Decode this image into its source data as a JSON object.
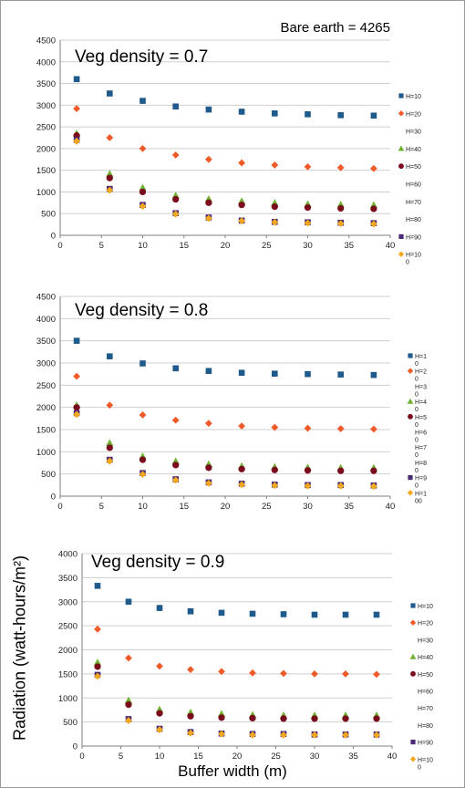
{
  "bare_earth_label": "Bare earth = 4265",
  "ylabel": "Radiation (watt-hours/m²)",
  "xlabel": "Buffer width (m)",
  "colors": {
    "H=10": "#1f5a8c",
    "H=20": "#f05a28",
    "H=40": "#70b032",
    "H=50": "#7a0a1e",
    "H=90": "#4a2a78",
    "H=100": "#f2a81e"
  },
  "chart_data": [
    {
      "type": "scatter",
      "title": "Veg density = 0.7",
      "xlim": [
        0,
        40
      ],
      "ylim": [
        0,
        4500
      ],
      "xticks": [
        "0",
        "5",
        "10",
        "15",
        "20",
        "25",
        "30",
        "35",
        "40"
      ],
      "yticks": [
        "0",
        "500",
        "1000",
        "1500",
        "2000",
        "2500",
        "3000",
        "3500",
        "4000",
        "4500"
      ],
      "grid": true,
      "legend_position": "right",
      "legend": [
        [
          "H=10"
        ],
        [
          "H=20"
        ],
        [
          "H=30"
        ],
        [
          "H=40"
        ],
        [
          "H=50"
        ],
        [
          "H=60"
        ],
        [
          "H=70"
        ],
        [
          "H=80"
        ],
        [
          "H=90"
        ],
        [
          "H=10",
          "0"
        ]
      ],
      "x": [
        2,
        6,
        10,
        14,
        18,
        22,
        26,
        30,
        34,
        38
      ],
      "series": [
        {
          "name": "H=10",
          "values": [
            3600,
            3270,
            3100,
            2970,
            2900,
            2850,
            2810,
            2790,
            2770,
            2760
          ]
        },
        {
          "name": "H=20",
          "values": [
            2920,
            2250,
            2000,
            1850,
            1750,
            1670,
            1620,
            1580,
            1560,
            1540
          ]
        },
        {
          "name": "H=40",
          "values": [
            2350,
            1420,
            1100,
            920,
            840,
            790,
            750,
            720,
            710,
            700
          ]
        },
        {
          "name": "H=50",
          "values": [
            2300,
            1320,
            1000,
            830,
            750,
            700,
            660,
            640,
            620,
            610
          ]
        },
        {
          "name": "H=90",
          "values": [
            2200,
            1070,
            700,
            510,
            410,
            340,
            310,
            300,
            290,
            280
          ]
        },
        {
          "name": "H=100",
          "values": [
            2170,
            1040,
            670,
            490,
            390,
            330,
            300,
            280,
            270,
            260
          ]
        }
      ]
    },
    {
      "type": "scatter",
      "title": "Veg density = 0.8",
      "xlim": [
        0,
        40
      ],
      "ylim": [
        0,
        4500
      ],
      "xticks": [
        "0",
        "5",
        "10",
        "15",
        "20",
        "25",
        "30",
        "35",
        "40"
      ],
      "yticks": [
        "0",
        "500",
        "1000",
        "1500",
        "2000",
        "2500",
        "3000",
        "3500",
        "4000",
        "4500"
      ],
      "grid": true,
      "legend_position": "right",
      "legend": [
        [
          "H=1",
          "0"
        ],
        [
          "H=2",
          "0"
        ],
        [
          "H=3",
          "0"
        ],
        [
          "H=4",
          "0"
        ],
        [
          "H=5",
          "0"
        ],
        [
          "H=6",
          "0"
        ],
        [
          "H=7",
          "0"
        ],
        [
          "H=8",
          "0"
        ],
        [
          "H=9",
          "0"
        ],
        [
          "H=1",
          "00"
        ]
      ],
      "x": [
        2,
        6,
        10,
        14,
        18,
        22,
        26,
        30,
        34,
        38
      ],
      "series": [
        {
          "name": "H=10",
          "values": [
            3500,
            3150,
            2990,
            2880,
            2820,
            2780,
            2760,
            2750,
            2740,
            2730
          ]
        },
        {
          "name": "H=20",
          "values": [
            2700,
            2050,
            1830,
            1710,
            1640,
            1580,
            1550,
            1530,
            1520,
            1510
          ]
        },
        {
          "name": "H=40",
          "values": [
            2050,
            1200,
            900,
            790,
            720,
            680,
            660,
            650,
            640,
            640
          ]
        },
        {
          "name": "H=50",
          "values": [
            2000,
            1090,
            820,
            700,
            640,
            610,
            590,
            580,
            570,
            570
          ]
        },
        {
          "name": "H=90",
          "values": [
            1870,
            820,
            520,
            380,
            310,
            280,
            260,
            250,
            250,
            240
          ]
        },
        {
          "name": "H=100",
          "values": [
            1840,
            790,
            490,
            360,
            290,
            260,
            240,
            230,
            230,
            220
          ]
        }
      ]
    },
    {
      "type": "scatter",
      "title": "Veg density = 0.9",
      "xlim": [
        0,
        40
      ],
      "ylim": [
        0,
        4000
      ],
      "xticks": [
        "0",
        "5",
        "10",
        "15",
        "20",
        "25",
        "30",
        "35",
        "40"
      ],
      "yticks": [
        "0",
        "500",
        "1000",
        "1500",
        "2000",
        "2500",
        "3000",
        "3500",
        "4000"
      ],
      "grid": true,
      "legend_position": "right",
      "legend": [
        [
          "H=10"
        ],
        [
          "H=20"
        ],
        [
          "H=30"
        ],
        [
          "H=40"
        ],
        [
          "H=50"
        ],
        [
          "H=60"
        ],
        [
          "H=70"
        ],
        [
          "H=80"
        ],
        [
          "H=90"
        ],
        [
          "H=10",
          "0"
        ]
      ],
      "x": [
        2,
        6,
        10,
        14,
        18,
        22,
        26,
        30,
        34,
        38
      ],
      "series": [
        {
          "name": "H=10",
          "values": [
            3330,
            3000,
            2870,
            2800,
            2770,
            2750,
            2740,
            2730,
            2730,
            2730
          ]
        },
        {
          "name": "H=20",
          "values": [
            2430,
            1830,
            1660,
            1590,
            1550,
            1520,
            1510,
            1500,
            1500,
            1490
          ]
        },
        {
          "name": "H=40",
          "values": [
            1740,
            950,
            760,
            700,
            670,
            650,
            640,
            640,
            640,
            640
          ]
        },
        {
          "name": "H=50",
          "values": [
            1650,
            860,
            680,
            620,
            590,
            580,
            570,
            570,
            570,
            570
          ]
        },
        {
          "name": "H=90",
          "values": [
            1480,
            560,
            360,
            290,
            260,
            250,
            250,
            240,
            240,
            240
          ]
        },
        {
          "name": "H=100",
          "values": [
            1450,
            530,
            340,
            270,
            250,
            230,
            230,
            230,
            230,
            230
          ]
        }
      ]
    }
  ]
}
